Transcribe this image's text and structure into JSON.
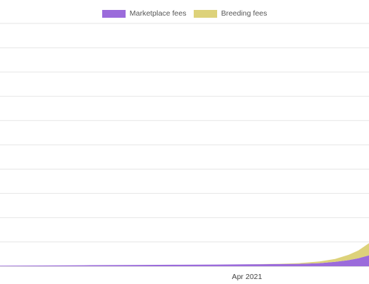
{
  "chart_data": {
    "type": "area",
    "stacked": true,
    "title": "",
    "xlabel": "",
    "ylabel": "",
    "grid": true,
    "legend_position": "top-center",
    "x_tick_labels": [
      {
        "label": "Apr 2021",
        "date": "2021-04-01"
      }
    ],
    "x_range": [
      "2020-07-20",
      "2021-08-05"
    ],
    "y_range": [
      0,
      10
    ],
    "y_tick_count": 10,
    "x": [
      "2020-07-20",
      "2020-09-01",
      "2020-10-15",
      "2020-12-01",
      "2021-01-15",
      "2021-03-01",
      "2021-04-01",
      "2021-05-01",
      "2021-05-25",
      "2021-06-15",
      "2021-07-01",
      "2021-07-15",
      "2021-07-25",
      "2021-08-05"
    ],
    "series": [
      {
        "name": "Marketplace fees",
        "color": "#9b6bdb",
        "values": [
          0.02,
          0.03,
          0.04,
          0.05,
          0.06,
          0.07,
          0.08,
          0.09,
          0.1,
          0.13,
          0.18,
          0.25,
          0.33,
          0.45
        ]
      },
      {
        "name": "Breeding fees",
        "color": "#ddd27a",
        "values": [
          0,
          0,
          0,
          0,
          0,
          0,
          0,
          0.01,
          0.03,
          0.07,
          0.12,
          0.22,
          0.32,
          0.5
        ]
      }
    ]
  }
}
